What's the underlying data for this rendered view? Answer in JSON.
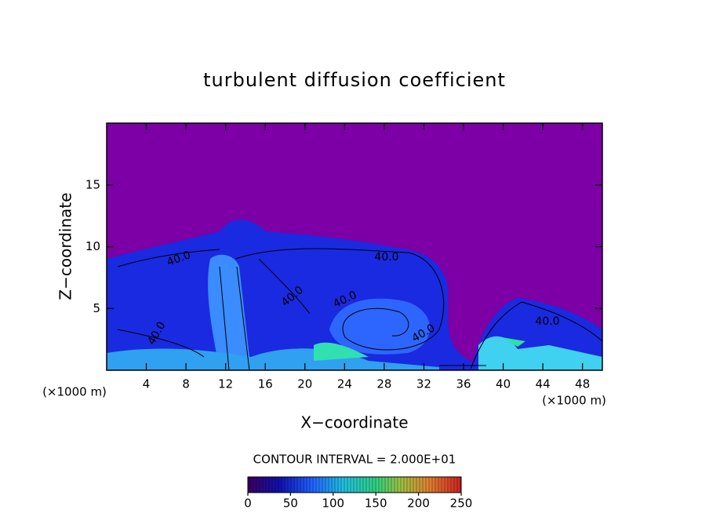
{
  "chart_data": {
    "type": "contour",
    "title": "turbulent diffusion coefficient",
    "x_label": "X−coordinate",
    "y_label": "Z−coordinate",
    "x_unit": "(×1000 m)",
    "y_unit": "(×1000 m)",
    "xlim": [
      0,
      50
    ],
    "ylim": [
      0,
      20
    ],
    "xticks": [
      4,
      8,
      12,
      16,
      20,
      24,
      28,
      32,
      36,
      40,
      44,
      48
    ],
    "yticks": [
      5,
      10,
      15
    ],
    "background_color": "#7c00a6",
    "contour_interval": {
      "value": 20,
      "label": "CONTOUR INTERVAL = 2.000E+01"
    },
    "contour_labels": [
      {
        "value": 40,
        "label": "40.0"
      },
      {
        "value": 40,
        "label": "40.0"
      },
      {
        "value": 40,
        "label": "40.0"
      },
      {
        "value": 40,
        "label": "40.0"
      },
      {
        "value": 40,
        "label": "40.0"
      },
      {
        "value": 40,
        "label": "40.0"
      },
      {
        "value": 40,
        "label": "40.0"
      }
    ],
    "colorbar": {
      "lim": [
        0,
        250
      ],
      "ticks": [
        0,
        50,
        100,
        150,
        200,
        250
      ]
    }
  }
}
